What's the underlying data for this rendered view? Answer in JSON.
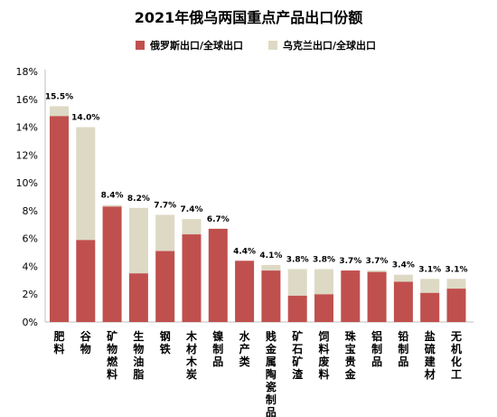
{
  "chart_data": {
    "type": "bar",
    "stacked": true,
    "title": "2021年俄乌两国重点产品出口份额",
    "xlabel": "",
    "ylabel": "",
    "ylim": [
      0,
      18
    ],
    "yticks": [
      "0%",
      "2%",
      "4%",
      "6%",
      "8%",
      "10%",
      "12%",
      "14%",
      "16%",
      "18%"
    ],
    "grid": false,
    "legend_position": "top",
    "categories": [
      "肥料",
      "谷物",
      "矿物燃料",
      "生物油脂",
      "钢铁",
      "木材木炭",
      "镍制品",
      "水产类",
      "贱金属陶瓷制品",
      "矿石矿渣",
      "饲料废料",
      "珠宝贵金",
      "铝制品",
      "铅制品",
      "盐硫建材",
      "无机化工"
    ],
    "series": [
      {
        "name": "俄罗斯出口/全球出口",
        "color": "#c0504d",
        "values": [
          14.8,
          5.9,
          8.3,
          3.5,
          5.1,
          6.3,
          6.7,
          4.4,
          3.7,
          1.9,
          2.0,
          3.7,
          3.6,
          2.9,
          2.1,
          2.4
        ]
      },
      {
        "name": "乌克兰出口/全球出口",
        "color": "#ddd9c4",
        "values": [
          0.7,
          8.1,
          0.1,
          4.7,
          2.6,
          1.1,
          0.0,
          0.0,
          0.4,
          1.9,
          1.8,
          0.0,
          0.1,
          0.5,
          1.0,
          0.7
        ]
      }
    ],
    "total_labels": [
      "15.5%",
      "14.0%",
      "8.4%",
      "8.2%",
      "7.7%",
      "7.4%",
      "6.7%",
      "4.4%",
      "4.1%",
      "3.8%",
      "3.8%",
      "3.7%",
      "3.7%",
      "3.4%",
      "3.1%",
      "3.1%"
    ]
  }
}
